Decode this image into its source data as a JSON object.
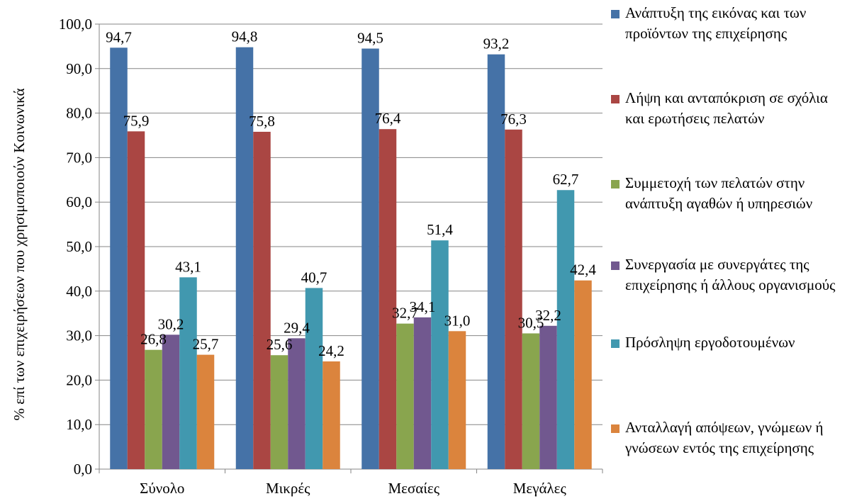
{
  "chart_data": {
    "type": "bar",
    "categories": [
      "Σύνολο",
      "Μικρές",
      "Μεσαίες",
      "Μεγάλες"
    ],
    "ylabel": "% επί των επιχειρήσεων που χρησιμοποιούν Κοινωνικά",
    "ylim": [
      0,
      100
    ],
    "yticks": [
      "0,0",
      "10,0",
      "20,0",
      "30,0",
      "40,0",
      "50,0",
      "60,0",
      "70,0",
      "80,0",
      "90,0",
      "100,0"
    ],
    "grid": true,
    "legend_position": "right",
    "series": [
      {
        "name": "Ανάπτυξη της εικόνας και των  προϊόντων της επιχείρησης",
        "color": "#4572A7",
        "values": [
          94.7,
          94.8,
          94.5,
          93.2
        ],
        "labels": [
          "94,7",
          "94,8",
          "94,5",
          "93,2"
        ]
      },
      {
        "name": "Λήψη και ανταπόκριση σε σχόλια και ερωτήσεις πελατών",
        "color": "#AA4643",
        "values": [
          75.9,
          75.8,
          76.4,
          76.3
        ],
        "labels": [
          "75,9",
          "75,8",
          "76,4",
          "76,3"
        ]
      },
      {
        "name": "Συμμετοχή των πελατών στην ανάπτυξη αγαθών ή υπηρεσιών",
        "color": "#89A54E",
        "values": [
          26.8,
          25.6,
          32.7,
          30.5
        ],
        "labels": [
          "26,8",
          "25,6",
          "32,7",
          "30,5"
        ]
      },
      {
        "name": "Συνεργασία με συνεργάτες της επιχείρησης ή άλλους οργανισμούς",
        "color": "#71588F",
        "values": [
          30.2,
          29.4,
          34.1,
          32.2
        ],
        "labels": [
          "30,2",
          "29,4",
          "34,1",
          "32,2"
        ]
      },
      {
        "name": "Πρόσληψη εργοδοτουμένων",
        "color": "#4198AF",
        "values": [
          43.1,
          40.7,
          51.4,
          62.7
        ],
        "labels": [
          "43,1",
          "40,7",
          "51,4",
          "62,7"
        ]
      },
      {
        "name": "Ανταλλαγή απόψεων, γνώμεων ή γνώσεων εντός της επιχείρησης",
        "color": "#DB843D",
        "values": [
          25.7,
          24.2,
          31.0,
          42.4
        ],
        "labels": [
          "25,7",
          "24,2",
          "31,0",
          "42,4"
        ]
      }
    ]
  }
}
